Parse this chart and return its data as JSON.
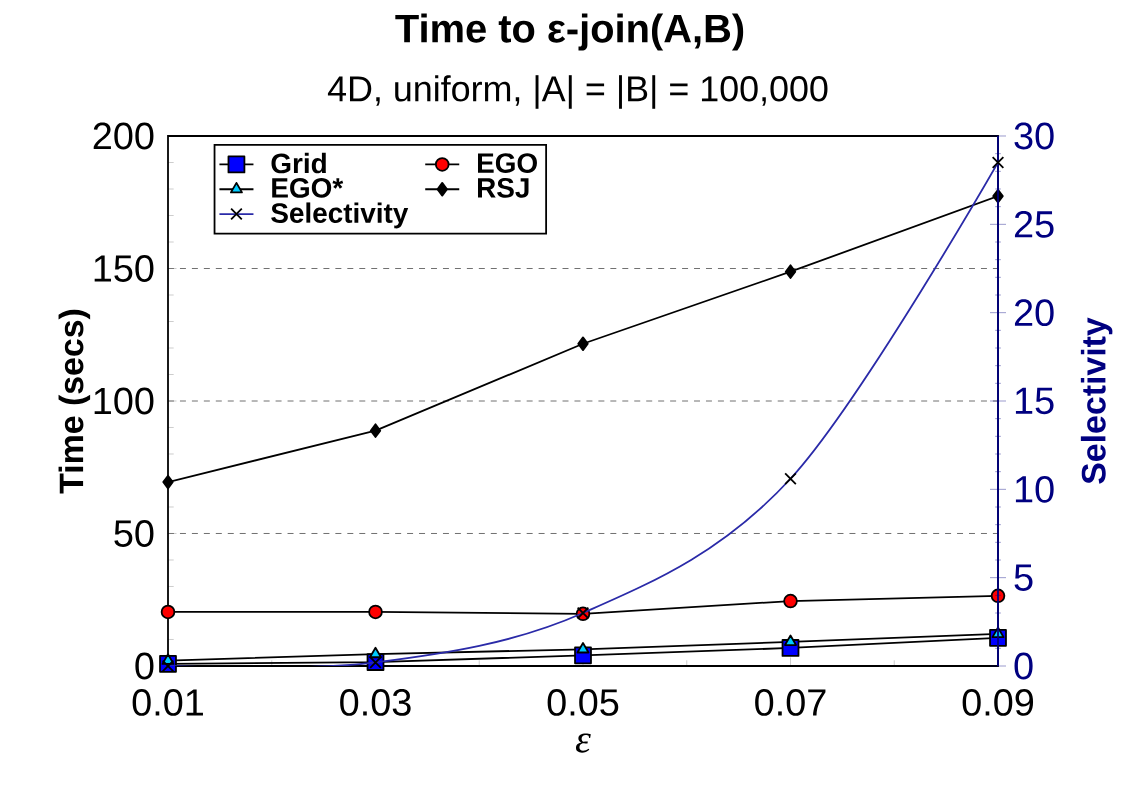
{
  "chart_data": {
    "type": "line",
    "title": "Time to ε-join(A,B)",
    "subtitle": "4D, uniform, |A| = |B| = 100,000",
    "xlabel": "ε",
    "ylabel": "Time (secs)",
    "y2label": "Selectivity",
    "x": [
      0.01,
      0.03,
      0.05,
      0.07,
      0.09
    ],
    "xlim": [
      0.01,
      0.09
    ],
    "xticks": [
      0.01,
      0.03,
      0.05,
      0.07,
      0.09
    ],
    "ylim": [
      0,
      200
    ],
    "yticks": [
      0,
      50,
      100,
      150,
      200
    ],
    "y2lim": [
      0,
      30
    ],
    "y2ticks": [
      0,
      5,
      10,
      15,
      20,
      25,
      30
    ],
    "grid": "y",
    "legend": "top left",
    "series": [
      {
        "name": "Grid",
        "color": "#0000ff",
        "marker": "square",
        "values": [
          0.8,
          1.5,
          4,
          6.8,
          10.6
        ]
      },
      {
        "name": "EGO",
        "color": "#ff0000",
        "marker": "circle",
        "values": [
          20.4,
          20.4,
          19.7,
          24.5,
          26.5
        ]
      },
      {
        "name": "EGO*",
        "color": "#00ccff",
        "marker": "triangle",
        "values": [
          2,
          4.5,
          6.3,
          9.1,
          12.1
        ]
      },
      {
        "name": "RSJ",
        "color": "#000000",
        "marker": "diamond",
        "values": [
          69.4,
          88.8,
          121.6,
          148.8,
          177.3
        ]
      },
      {
        "name": "Selectivity",
        "color": "#2a2aa8",
        "marker": "cross",
        "axis": "y2",
        "type": "line",
        "values": [
          0,
          0.2,
          3.0,
          10.6,
          28.5
        ]
      }
    ]
  }
}
